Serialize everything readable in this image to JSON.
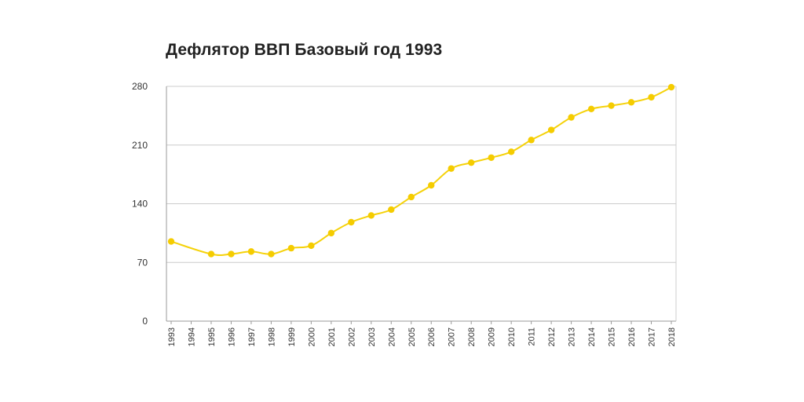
{
  "chart_data": {
    "type": "line",
    "title": "Дефлятор ВВП Базовый год 1993",
    "xlabel": "",
    "ylabel": "",
    "ylim": [
      0,
      280
    ],
    "y_ticks": [
      0,
      70,
      140,
      210,
      280
    ],
    "grid": true,
    "legend": "none",
    "colors": {
      "line": "#F5D20A",
      "marker": "#F5CC00",
      "grid": "#cccccc",
      "axis": "#999999"
    },
    "x": [
      "1993",
      "1994",
      "1995",
      "1996",
      "1997",
      "1998",
      "1999",
      "2000",
      "2001",
      "2002",
      "2003",
      "2004",
      "2005",
      "2006",
      "2007",
      "2008",
      "2009",
      "2010",
      "2011",
      "2012",
      "2013",
      "2014",
      "2015",
      "2016",
      "2017",
      "2018"
    ],
    "series": [
      {
        "values": [
          95,
          null,
          80,
          80,
          83,
          80,
          87,
          90,
          105,
          118,
          126,
          133,
          148,
          162,
          182,
          189,
          195,
          202,
          216,
          228,
          243,
          253,
          257,
          261,
          267,
          279
        ]
      }
    ]
  }
}
